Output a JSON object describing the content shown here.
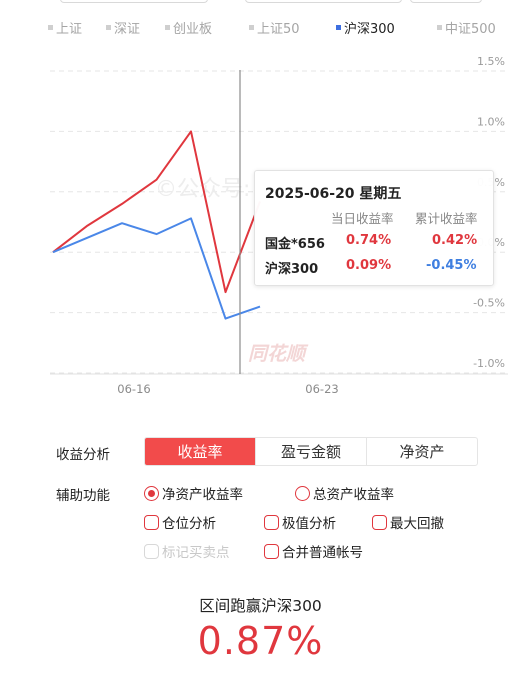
{
  "legend": {
    "items": [
      {
        "label": "上证",
        "active": false
      },
      {
        "label": "深证",
        "active": false
      },
      {
        "label": "创业板",
        "active": false
      },
      {
        "label": "上证50",
        "active": false
      },
      {
        "label": "沪深300",
        "active": true
      },
      {
        "label": "中证500",
        "active": false
      }
    ]
  },
  "chart_data": {
    "type": "line",
    "x": [
      "06-12",
      "06-13",
      "06-16",
      "06-17",
      "06-18",
      "06-19",
      "06-20"
    ],
    "xticks": [
      "06-16",
      "06-23"
    ],
    "ylim": [
      -1.0,
      1.5
    ],
    "yticks": [
      "1.5%",
      "1.0%",
      "0.5%",
      "0.0%",
      "-0.5%",
      "-1.0%"
    ],
    "series": [
      {
        "name": "国金*656",
        "color": "#e0373e",
        "values": [
          0.0,
          0.22,
          0.4,
          0.6,
          1.0,
          -0.33,
          0.42
        ]
      },
      {
        "name": "沪深300",
        "color": "#4a87e8",
        "values": [
          0.0,
          0.12,
          0.24,
          0.15,
          0.28,
          -0.55,
          -0.45
        ]
      }
    ],
    "crosshair_x": "06-20",
    "watermarks": [
      "©公众号: 白水之下",
      "同花顺"
    ]
  },
  "tooltip": {
    "date": "2025-06-20 星期五",
    "col1": "当日收益率",
    "col2": "累计收益率",
    "rows": [
      {
        "name": "国金*656",
        "daily": "0.74%",
        "cumulative": "0.42%"
      },
      {
        "name": "沪深300",
        "daily": "0.09%",
        "cumulative": "-0.45%"
      }
    ]
  },
  "analysis": {
    "label": "收益分析",
    "tabs": [
      "收益率",
      "盈亏金额",
      "净资产"
    ],
    "selected": "收益率"
  },
  "aux": {
    "label": "辅助功能",
    "radios": [
      {
        "label": "净资产收益率",
        "checked": true
      },
      {
        "label": "总资产收益率",
        "checked": false
      }
    ],
    "checkboxes": [
      {
        "label": "仓位分析",
        "disabled": false
      },
      {
        "label": "极值分析",
        "disabled": false
      },
      {
        "label": "最大回撤",
        "disabled": false
      },
      {
        "label": "标记买卖点",
        "disabled": true
      },
      {
        "label": "合并普通帐号",
        "disabled": false
      }
    ]
  },
  "summary": {
    "label": "区间跑赢沪深300",
    "value": "0.87%"
  }
}
